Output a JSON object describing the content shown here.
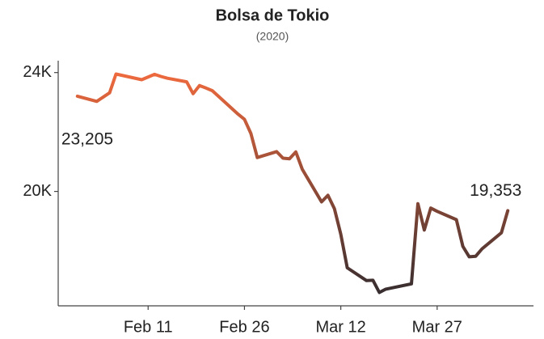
{
  "chart_data": {
    "type": "line",
    "title": "Bolsa de Tokio",
    "subtitle": "(2020)",
    "x": [
      "Jan 31",
      "Feb 3",
      "Feb 5",
      "Feb 6",
      "Feb 10",
      "Feb 12",
      "Feb 13",
      "Feb 14",
      "Feb 17",
      "Feb 18",
      "Feb 19",
      "Feb 20",
      "Feb 21",
      "Feb 25",
      "Feb 26",
      "Feb 27",
      "Feb 28",
      "Mar 2",
      "Mar 3",
      "Mar 4",
      "Mar 5",
      "Mar 6",
      "Mar 9",
      "Mar 10",
      "Mar 11",
      "Mar 12",
      "Mar 13",
      "Mar 16",
      "Mar 17",
      "Mar 18",
      "Mar 19",
      "Mar 23",
      "Mar 24",
      "Mar 25",
      "Mar 26",
      "Mar 27",
      "Mar 30",
      "Mar 31",
      "Apr 1",
      "Apr 2",
      "Apr 3",
      "Apr 6",
      "Apr 7"
    ],
    "values": [
      23205,
      23030,
      23320,
      23950,
      23760,
      23940,
      23870,
      23810,
      23690,
      23290,
      23565,
      23480,
      23390,
      22600,
      22430,
      21950,
      21140,
      21340,
      21120,
      21100,
      21330,
      20750,
      19650,
      19870,
      19420,
      18560,
      17430,
      17000,
      17010,
      16600,
      16710,
      16890,
      19590,
      18700,
      19440,
      19330,
      19050,
      18150,
      17800,
      17820,
      18070,
      18610,
      19353
    ],
    "value_labels": [
      "23,205",
      null,
      null,
      null,
      null,
      null,
      null,
      null,
      null,
      null,
      null,
      null,
      null,
      null,
      null,
      null,
      null,
      null,
      null,
      null,
      null,
      null,
      null,
      null,
      null,
      null,
      null,
      null,
      null,
      null,
      null,
      null,
      null,
      null,
      null,
      null,
      null,
      null,
      null,
      null,
      null,
      null,
      "19,353"
    ],
    "color_high": "#ef6a3e",
    "color_low": "#2d2a2f",
    "xlim": [
      "Jan 28",
      "Apr 11"
    ],
    "xticks": [
      "Feb 11",
      "Feb 26",
      "Mar 12",
      "Mar 27"
    ],
    "ylim": [
      16150,
      24400
    ],
    "yticks": [
      {
        "value": 20000,
        "label": "20K"
      },
      {
        "value": 24000,
        "label": "24K"
      }
    ]
  }
}
